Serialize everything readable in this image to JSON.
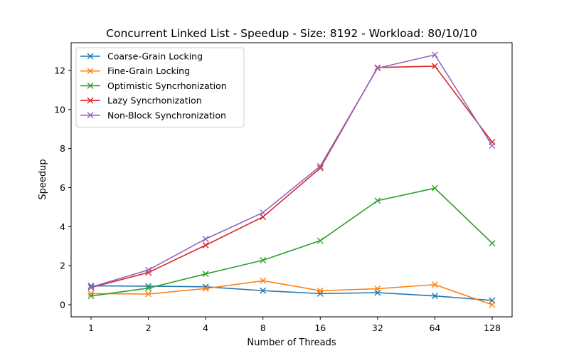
{
  "chart_data": {
    "type": "line",
    "title": "Concurrent Linked List - Speedup - Size: 8192 - Workload: 80/10/10",
    "xlabel": "Number of Threads",
    "ylabel": "Speedup",
    "categories": [
      "1",
      "2",
      "4",
      "8",
      "16",
      "32",
      "64",
      "128"
    ],
    "ylim": [
      -0.62,
      13.42
    ],
    "yticks": [
      0,
      2,
      4,
      6,
      8,
      10,
      12
    ],
    "grid": false,
    "legend_position": "upper-left",
    "marker": "x",
    "series": [
      {
        "name": "Coarse-Grain Locking",
        "color": "#1f77b4",
        "values": [
          0.97,
          0.95,
          0.92,
          0.72,
          0.57,
          0.62,
          0.45,
          0.22
        ]
      },
      {
        "name": "Fine-Grain Locking",
        "color": "#ff7f0e",
        "values": [
          0.57,
          0.55,
          0.83,
          1.23,
          0.72,
          0.82,
          1.03,
          0.0
        ]
      },
      {
        "name": "Optimistic Syncrhonization",
        "color": "#2ca02c",
        "values": [
          0.45,
          0.85,
          1.58,
          2.28,
          3.28,
          5.33,
          5.97,
          3.15
        ]
      },
      {
        "name": "Lazy Syncrhonization",
        "color": "#d62728",
        "values": [
          0.88,
          1.65,
          3.05,
          4.5,
          7.0,
          12.15,
          12.22,
          8.33
        ]
      },
      {
        "name": "Non-Block Synchronization",
        "color": "#9467bd",
        "values": [
          0.9,
          1.78,
          3.37,
          4.72,
          7.1,
          12.12,
          12.8,
          8.15
        ]
      }
    ]
  }
}
